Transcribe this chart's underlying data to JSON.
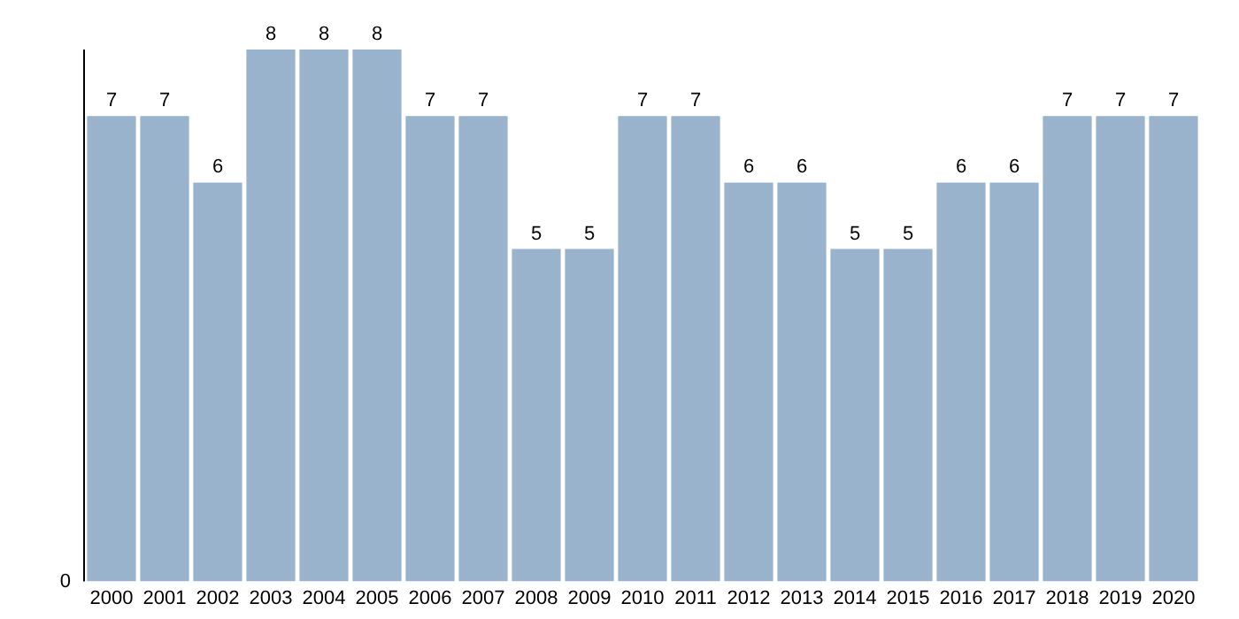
{
  "chart_data": {
    "type": "bar",
    "categories": [
      "2000",
      "2001",
      "2002",
      "2003",
      "2004",
      "2005",
      "2006",
      "2007",
      "2008",
      "2009",
      "2010",
      "2011",
      "2012",
      "2013",
      "2014",
      "2015",
      "2016",
      "2017",
      "2018",
      "2019",
      "2020"
    ],
    "values": [
      7,
      7,
      6,
      8,
      8,
      8,
      7,
      7,
      5,
      5,
      7,
      7,
      6,
      6,
      5,
      5,
      6,
      6,
      7,
      7,
      7
    ],
    "color": "#9ab3cd",
    "ylim": [
      0,
      8
    ],
    "data_labels": true,
    "annotations": [
      "0"
    ]
  }
}
